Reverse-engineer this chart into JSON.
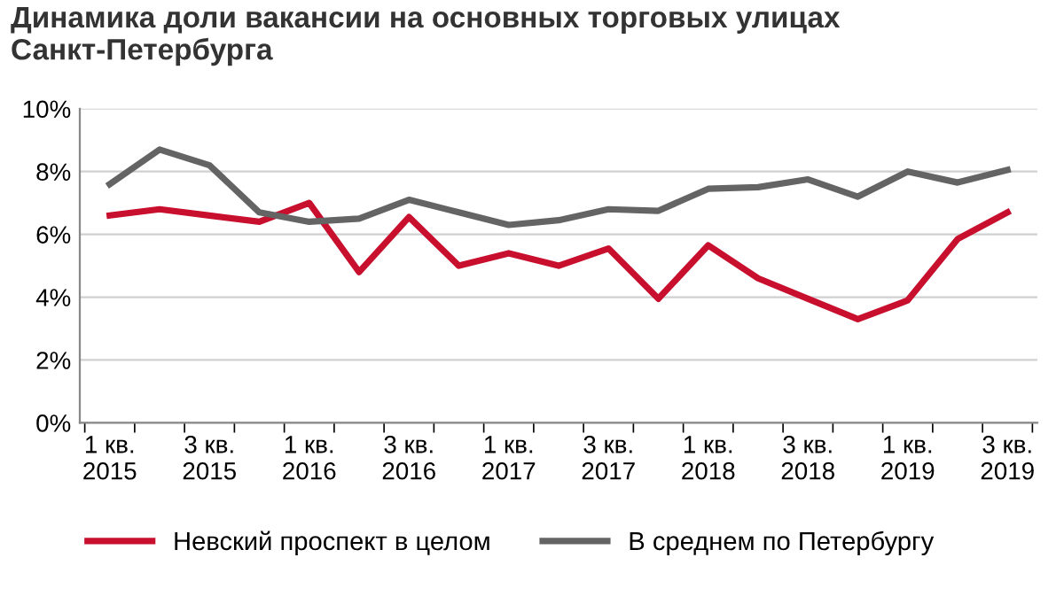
{
  "chart_data": {
    "type": "line",
    "title": "Динамика доли вакансии на основных торговых улицах\nСанкт-Петербурга",
    "categories": [
      "1 кв.\n2015",
      null,
      "3 кв.\n2015",
      null,
      "1 кв.\n2016",
      null,
      "3 кв.\n2016",
      null,
      "1 кв.\n2017",
      null,
      "3 кв.\n2017",
      null,
      "1 кв.\n2018",
      null,
      "3 кв.\n2018",
      null,
      "1 кв.\n2019",
      null,
      "3 кв.\n2019"
    ],
    "series": [
      {
        "name": "Невский проспект в целом",
        "color": "#c8102e",
        "values": [
          6.6,
          6.8,
          6.6,
          6.4,
          7.0,
          4.8,
          6.55,
          5.0,
          5.4,
          5.0,
          5.55,
          3.95,
          5.65,
          4.6,
          3.95,
          3.3,
          3.9,
          5.85,
          6.7
        ]
      },
      {
        "name": "В среднем по Петербургу",
        "color": "#646464",
        "values": [
          7.6,
          8.7,
          8.2,
          6.7,
          6.4,
          6.5,
          7.1,
          6.7,
          6.3,
          6.45,
          6.8,
          6.75,
          7.45,
          7.5,
          7.75,
          7.2,
          8.0,
          7.65,
          8.05
        ]
      }
    ],
    "ylim": [
      0,
      10
    ],
    "yticks": [
      {
        "value": 0,
        "label": "0%"
      },
      {
        "value": 2,
        "label": "2%"
      },
      {
        "value": 4,
        "label": "4%"
      },
      {
        "value": 6,
        "label": "6%"
      },
      {
        "value": 8,
        "label": "8%"
      },
      {
        "value": 10,
        "label": "10%"
      }
    ],
    "grid": "y",
    "legend": "bottom",
    "marker": "none",
    "line_style": "solid"
  }
}
